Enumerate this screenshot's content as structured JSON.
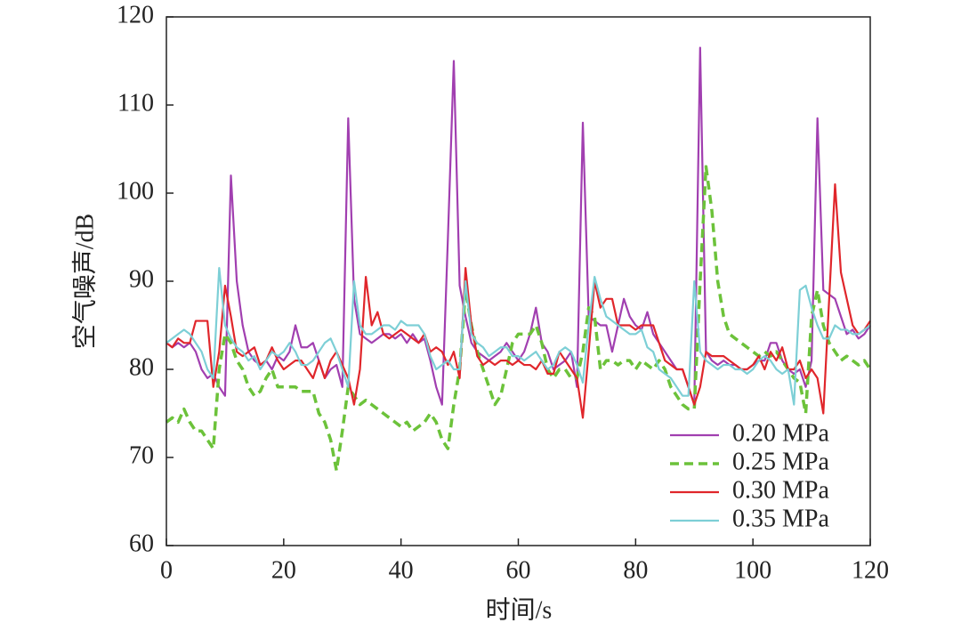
{
  "chart_data": {
    "type": "line",
    "xlabel": "时间/s",
    "ylabel": "空气噪声/dB",
    "x": [
      0,
      1,
      2,
      3,
      4,
      5,
      6,
      7,
      8,
      9,
      10,
      11,
      12,
      13,
      14,
      15,
      16,
      17,
      18,
      19,
      20,
      21,
      22,
      23,
      24,
      25,
      26,
      27,
      28,
      29,
      30,
      31,
      32,
      33,
      34,
      35,
      36,
      37,
      38,
      39,
      40,
      41,
      42,
      43,
      44,
      45,
      46,
      47,
      48,
      49,
      50,
      51,
      52,
      53,
      54,
      55,
      56,
      57,
      58,
      59,
      60,
      61,
      62,
      63,
      64,
      65,
      66,
      67,
      68,
      69,
      70,
      71,
      72,
      73,
      74,
      75,
      76,
      77,
      78,
      79,
      80,
      81,
      82,
      83,
      84,
      85,
      86,
      87,
      88,
      89,
      90,
      91,
      92,
      93,
      94,
      95,
      96,
      97,
      98,
      99,
      100,
      101,
      102,
      103,
      104,
      105,
      106,
      107,
      108,
      109,
      110,
      111,
      112,
      113,
      114,
      115,
      116,
      117,
      118,
      119,
      120
    ],
    "xlim": [
      0,
      120
    ],
    "xticks": [
      0,
      20,
      40,
      60,
      80,
      100,
      120
    ],
    "ylim": [
      60,
      120
    ],
    "yticks": [
      60,
      70,
      80,
      90,
      100,
      110,
      120
    ],
    "legend": "lower right",
    "series": [
      {
        "name": "0.20 MPa",
        "color": "#a13fb0",
        "linestyle": "solid",
        "values": [
          83,
          82.5,
          83,
          82.5,
          83,
          82,
          80,
          79,
          79.5,
          78,
          77,
          102,
          90,
          85,
          82,
          81,
          80.5,
          81,
          80,
          81.5,
          81,
          82,
          85,
          82.5,
          82.5,
          83,
          81,
          79,
          80,
          80.5,
          78,
          108.5,
          88,
          84,
          83.5,
          83,
          83.5,
          84,
          84,
          83.5,
          84,
          83,
          84,
          83,
          83.5,
          81,
          78,
          76,
          95,
          115,
          89.5,
          86,
          83,
          82,
          81.5,
          81,
          81.5,
          82,
          83,
          82,
          81,
          82,
          84,
          87,
          83,
          82,
          80,
          80.5,
          81,
          82,
          78,
          108,
          86,
          85.5,
          85,
          85,
          82,
          85,
          88,
          86,
          85,
          84.5,
          86.5,
          84,
          83,
          82,
          81,
          80,
          80,
          78,
          76,
          116.5,
          82,
          81,
          80.5,
          81,
          80.5,
          80.5,
          80,
          80,
          80.5,
          81,
          81,
          83,
          83,
          81,
          80,
          79.5,
          80,
          78,
          81,
          108.5,
          89,
          88.5,
          88,
          86,
          84,
          84.5,
          83.5,
          84,
          85
        ]
      },
      {
        "name": "0.25 MPa",
        "color": "#6cc23a",
        "linestyle": "dashed",
        "values": [
          74,
          74.5,
          74,
          75.5,
          74,
          73,
          73,
          72,
          71,
          80,
          84,
          83,
          81,
          80,
          78,
          77,
          77.5,
          79,
          80,
          78,
          78,
          78,
          78,
          77.5,
          77.5,
          77.5,
          75,
          74,
          72,
          68.5,
          73,
          78,
          77,
          76,
          76.5,
          76,
          75.5,
          75,
          74.5,
          74,
          73.5,
          74,
          73,
          73.5,
          74,
          75,
          74,
          72,
          71,
          76,
          80,
          89,
          85,
          82,
          80,
          78,
          76,
          77,
          80,
          83,
          84,
          84,
          84,
          85,
          83,
          80,
          79,
          80,
          80,
          79,
          79,
          82,
          87,
          86,
          80,
          81,
          81,
          80.5,
          81,
          81,
          80,
          81,
          80.5,
          80,
          81,
          80,
          78,
          77,
          76,
          75.5,
          75.5,
          90,
          103,
          98,
          90,
          86,
          84,
          83.5,
          83,
          82.5,
          82,
          81.5,
          82,
          81.5,
          82,
          81,
          80,
          79,
          78.5,
          75,
          86,
          89,
          85,
          83,
          82,
          81,
          81.5,
          81,
          80.5,
          81,
          80
        ]
      },
      {
        "name": "0.30 MPa",
        "color": "#e0262b",
        "linestyle": "solid",
        "values": [
          83,
          82.5,
          83.5,
          83,
          83,
          85.5,
          85.5,
          85.5,
          78,
          82,
          89.5,
          86,
          82,
          81.5,
          82,
          82.5,
          80.5,
          81,
          82.5,
          81,
          80,
          80.5,
          81,
          81,
          80,
          79,
          81,
          79,
          81,
          82,
          80.5,
          79,
          76,
          80,
          90.5,
          85,
          86.5,
          84,
          83.5,
          84,
          84.5,
          84,
          83.5,
          83,
          84,
          82,
          82.5,
          82,
          80.5,
          82,
          79,
          91.5,
          85,
          81.5,
          80.5,
          81,
          80.5,
          81,
          81,
          80.5,
          81,
          80.5,
          80.5,
          80,
          81,
          79.5,
          79.5,
          82,
          81,
          80,
          79,
          74.5,
          82,
          90,
          87,
          88,
          88,
          85,
          85,
          85,
          84.5,
          85,
          85,
          85,
          83,
          81,
          80.5,
          80,
          80,
          78,
          76,
          78,
          82,
          81.5,
          81.5,
          81.5,
          81,
          80.5,
          80,
          80,
          80.5,
          81.5,
          80,
          82,
          81,
          82.5,
          80,
          80,
          81,
          79,
          80,
          79,
          75,
          88,
          101,
          91,
          88,
          85,
          84,
          84.5,
          85.5
        ]
      },
      {
        "name": "0.35 MPa",
        "color": "#7dcfd6",
        "linestyle": "solid",
        "values": [
          83,
          83.5,
          84,
          84.5,
          84,
          83,
          82,
          80,
          79,
          91.5,
          85,
          83.5,
          82.5,
          82,
          81,
          81.5,
          80,
          81,
          82,
          81.5,
          82,
          83,
          82,
          80.5,
          80.5,
          81,
          82,
          83,
          83.5,
          82,
          80,
          78,
          90,
          85,
          84,
          84,
          84.5,
          85,
          85,
          84.5,
          85.5,
          85,
          85,
          85,
          84,
          81.5,
          80,
          80.5,
          81,
          80,
          80,
          90,
          84,
          83,
          82.5,
          81.5,
          82,
          82.5,
          82.5,
          81.5,
          81.5,
          81,
          81.5,
          82,
          81,
          80,
          80.5,
          82,
          82.5,
          82,
          80.5,
          78.5,
          85,
          90.5,
          88,
          86,
          85.5,
          85,
          84.5,
          84,
          84,
          84.5,
          82.5,
          82,
          80,
          79.5,
          79,
          78,
          77,
          77,
          90,
          82,
          81,
          80.5,
          80,
          80.5,
          80.5,
          80,
          80,
          79.5,
          80,
          81,
          81.5,
          81,
          80,
          79.5,
          80,
          76,
          89,
          89.5,
          87,
          85,
          83.5,
          83.5,
          85,
          84.5,
          84.5,
          84,
          84,
          84.5,
          85
        ]
      }
    ]
  }
}
